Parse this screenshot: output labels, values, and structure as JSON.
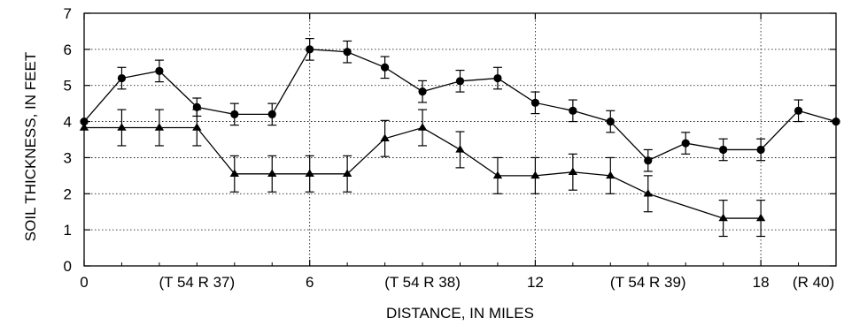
{
  "chart_data": {
    "type": "line",
    "title": "",
    "xlabel": "DISTANCE, IN MILES",
    "ylabel": "SOIL THICKNESS, IN FEET",
    "xlim": [
      0,
      20
    ],
    "ylim": [
      0,
      7
    ],
    "x_ticks": [
      0,
      6,
      12,
      18
    ],
    "y_ticks": [
      0,
      1,
      2,
      3,
      4,
      5,
      6,
      7
    ],
    "x_tick_labels": [
      "0",
      "6",
      "12",
      "18"
    ],
    "y_tick_labels": [
      "0",
      "1",
      "2",
      "3",
      "4",
      "5",
      "6",
      "7"
    ],
    "grid": true,
    "township_labels": [
      {
        "text": "(T 54 R 37)",
        "x": 3
      },
      {
        "text": "(T 54 R 38)",
        "x": 9
      },
      {
        "text": "(T 54 R 39)",
        "x": 15
      },
      {
        "text": "(R 40)",
        "x": 19.4
      }
    ],
    "series": [
      {
        "marker": "circle",
        "color": "#000000",
        "points": [
          {
            "x": 0,
            "y": 4.0,
            "err": 0.0
          },
          {
            "x": 1,
            "y": 5.2,
            "err": 0.3
          },
          {
            "x": 2,
            "y": 5.4,
            "err": 0.3
          },
          {
            "x": 3,
            "y": 4.4,
            "err": 0.25
          },
          {
            "x": 4,
            "y": 4.2,
            "err": 0.3
          },
          {
            "x": 5,
            "y": 4.2,
            "err": 0.3
          },
          {
            "x": 6,
            "y": 6.0,
            "err": 0.3
          },
          {
            "x": 7,
            "y": 5.93,
            "err": 0.3
          },
          {
            "x": 8,
            "y": 5.5,
            "err": 0.3
          },
          {
            "x": 9,
            "y": 4.83,
            "err": 0.3
          },
          {
            "x": 10,
            "y": 5.12,
            "err": 0.3
          },
          {
            "x": 11,
            "y": 5.2,
            "err": 0.3
          },
          {
            "x": 12,
            "y": 4.52,
            "err": 0.3
          },
          {
            "x": 13,
            "y": 4.3,
            "err": 0.3
          },
          {
            "x": 14,
            "y": 4.0,
            "err": 0.3
          },
          {
            "x": 15,
            "y": 2.92,
            "err": 0.3
          },
          {
            "x": 16,
            "y": 3.4,
            "err": 0.3
          },
          {
            "x": 17,
            "y": 3.22,
            "err": 0.3
          },
          {
            "x": 18,
            "y": 3.22,
            "err": 0.3
          },
          {
            "x": 19,
            "y": 4.3,
            "err": 0.3
          },
          {
            "x": 20,
            "y": 4.0,
            "err": 0.0
          }
        ]
      },
      {
        "marker": "triangle",
        "color": "#000000",
        "points": [
          {
            "x": 0,
            "y": 3.83,
            "err": 0.0
          },
          {
            "x": 2,
            "y": 3.83,
            "err": 0.5
          },
          {
            "x": 1,
            "y": 3.83,
            "err": 0.5
          },
          {
            "x": 3,
            "y": 3.83,
            "err": 0.5
          },
          {
            "x": 4,
            "y": 2.55,
            "err": 0.5
          },
          {
            "x": 5,
            "y": 2.55,
            "err": 0.5
          },
          {
            "x": 6,
            "y": 2.55,
            "err": 0.5
          },
          {
            "x": 7,
            "y": 2.55,
            "err": 0.5
          },
          {
            "x": 8,
            "y": 3.53,
            "err": 0.5
          },
          {
            "x": 9,
            "y": 3.83,
            "err": 0.5
          },
          {
            "x": 10,
            "y": 3.22,
            "err": 0.5
          },
          {
            "x": 11,
            "y": 2.5,
            "err": 0.5
          },
          {
            "x": 12,
            "y": 2.5,
            "err": 0.5
          },
          {
            "x": 13,
            "y": 2.6,
            "err": 0.5
          },
          {
            "x": 14,
            "y": 2.5,
            "err": 0.5
          },
          {
            "x": 15,
            "y": 2.0,
            "err": 0.5
          },
          {
            "x": 17,
            "y": 1.32,
            "err": 0.5
          },
          {
            "x": 18,
            "y": 1.32,
            "err": 0.5
          }
        ]
      }
    ]
  }
}
